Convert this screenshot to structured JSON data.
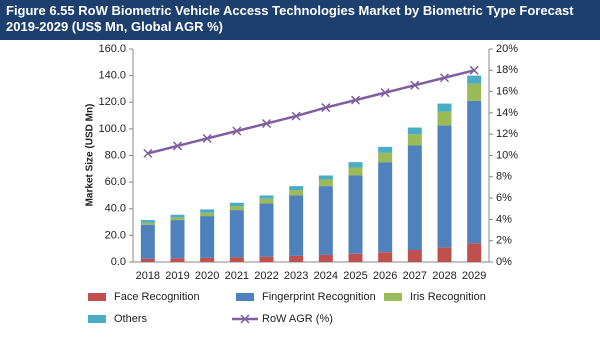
{
  "chart_data": {
    "type": "bar",
    "title": "Figure 6.55 RoW Biometric Vehicle Access Technologies Market by Biometric Type Forecast 2019-2029 (US$ Mn, Global AGR %)",
    "y_label": "Market Size (USD Mn)",
    "categories": [
      "2018",
      "2019",
      "2020",
      "2021",
      "2022",
      "2023",
      "2024",
      "2025",
      "2026",
      "2027",
      "2028",
      "2029"
    ],
    "stacked": true,
    "series": [
      {
        "name": "Face Recognition",
        "color": "#c0504d",
        "values": [
          2.5,
          2.8,
          3.1,
          3.5,
          4,
          4.6,
          5.3,
          6.2,
          7.4,
          9,
          11,
          14
        ]
      },
      {
        "name": "Fingerprint Recognition",
        "color": "#4f81bd",
        "values": [
          25.5,
          28.7,
          31.4,
          35.5,
          40,
          45.4,
          51.7,
          58.8,
          67.6,
          78.5,
          91.5,
          107
        ]
      },
      {
        "name": "Iris Recognition",
        "color": "#9bbb59",
        "values": [
          1.5,
          2,
          2.5,
          3,
          3.5,
          4,
          5,
          6,
          7,
          8.5,
          10.5,
          13
        ]
      },
      {
        "name": "Others",
        "color": "#4bacc6",
        "values": [
          2,
          2,
          2.5,
          2.5,
          2.5,
          3,
          3,
          4,
          4.5,
          5,
          6,
          6
        ]
      },
      {
        "name": "RoW AGR (%)",
        "color": "#7f5fa0",
        "type": "line",
        "axis": "y2",
        "values": [
          10.2,
          10.9,
          11.6,
          12.3,
          13.0,
          13.7,
          14.5,
          15.2,
          15.9,
          16.6,
          17.3,
          18.0
        ]
      }
    ],
    "ylim": [
      0,
      160
    ],
    "yticks": [
      {
        "value": 0,
        "label": "0.0"
      },
      {
        "value": 20,
        "label": "20.0"
      },
      {
        "value": 40,
        "label": "40.0"
      },
      {
        "value": 60,
        "label": "60.0"
      },
      {
        "value": 80,
        "label": "80.0"
      },
      {
        "value": 100,
        "label": "100.0"
      },
      {
        "value": 120,
        "label": "120.0"
      },
      {
        "value": 140,
        "label": "140.0"
      },
      {
        "value": 160,
        "label": "160.0"
      }
    ],
    "y2lim": [
      0,
      20
    ],
    "y2ticks": [
      {
        "value": 0,
        "label": "0%"
      },
      {
        "value": 2,
        "label": "2%"
      },
      {
        "value": 4,
        "label": "4%"
      },
      {
        "value": 6,
        "label": "6%"
      },
      {
        "value": 8,
        "label": "8%"
      },
      {
        "value": 10,
        "label": "10%"
      },
      {
        "value": 12,
        "label": "12%"
      },
      {
        "value": 14,
        "label": "14%"
      },
      {
        "value": 16,
        "label": "16%"
      },
      {
        "value": 18,
        "label": "18%"
      },
      {
        "value": 20,
        "label": "20%"
      }
    ]
  }
}
